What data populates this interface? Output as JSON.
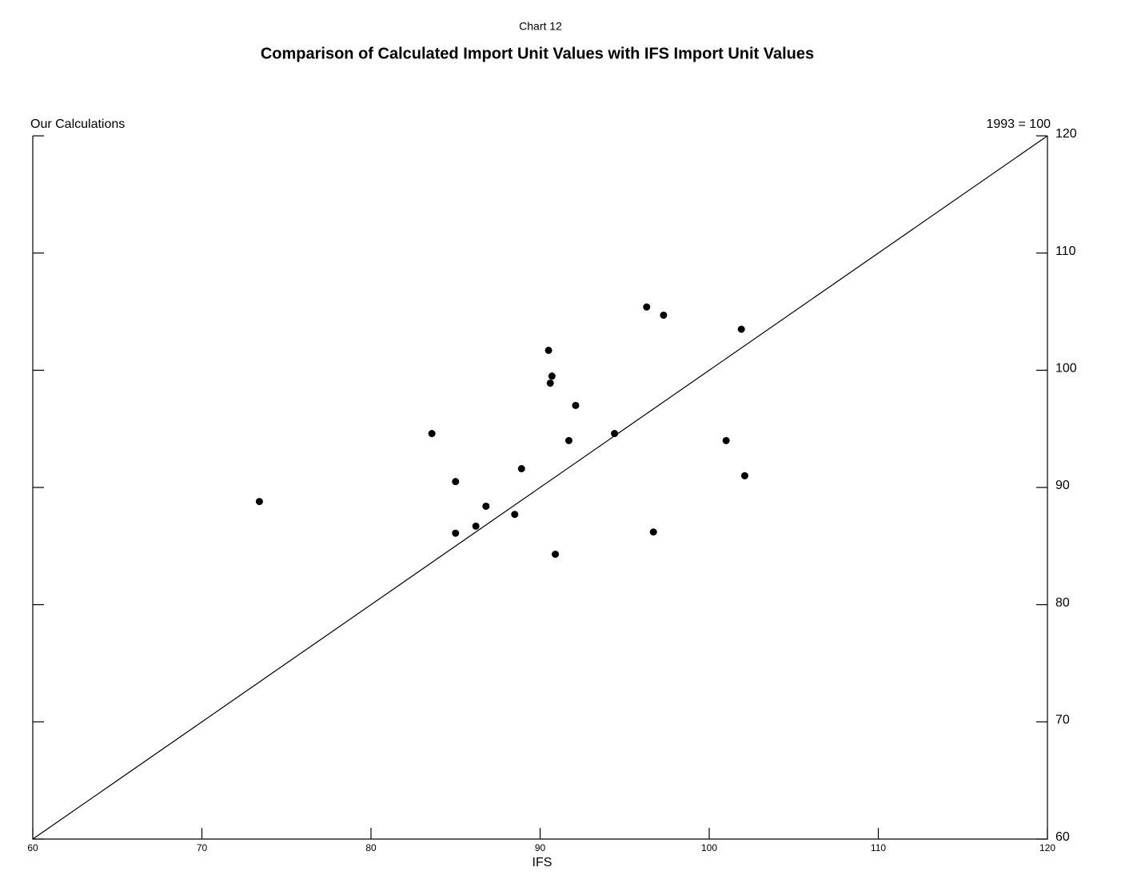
{
  "chart_data": {
    "type": "scatter",
    "subtitle": "Chart 12",
    "title": "Comparison of Calculated Import Unit Values with IFS Import Unit Values",
    "y_label": "Our Calculations",
    "x_label": "IFS",
    "note": "1993 = 100",
    "color": "#000000",
    "reference_line": true,
    "xlim": [
      60,
      120
    ],
    "xticks": [
      60,
      70,
      80,
      90,
      100,
      110,
      120
    ],
    "ylim": [
      60,
      120
    ],
    "yticks": [
      60,
      70,
      80,
      90,
      100,
      110,
      120
    ],
    "x": [
      73.4,
      83.6,
      85.0,
      85.0,
      86.2,
      86.8,
      88.5,
      88.9,
      90.5,
      90.7,
      90.6,
      90.9,
      91.7,
      92.1,
      94.4,
      96.3,
      96.7,
      97.3,
      101.0,
      101.9,
      102.1
    ],
    "values": [
      88.8,
      94.6,
      90.5,
      86.1,
      86.7,
      88.4,
      87.7,
      91.6,
      101.7,
      99.5,
      98.9,
      84.3,
      94.0,
      97.0,
      94.6,
      105.4,
      86.2,
      104.7,
      94.0,
      103.5,
      91.0
    ]
  }
}
